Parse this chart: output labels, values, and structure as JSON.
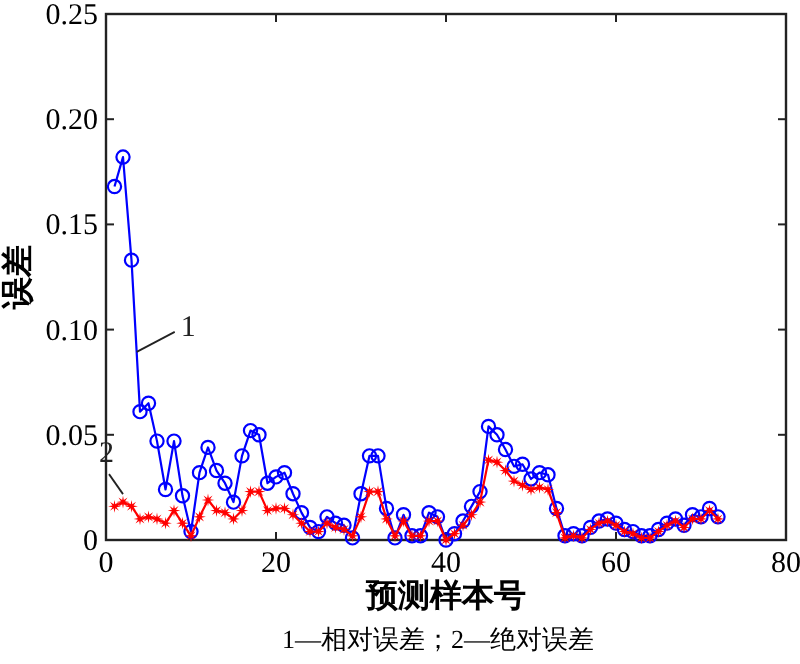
{
  "chart_data": {
    "type": "line",
    "xlabel": "预测样本号",
    "ylabel": "误差",
    "x": [
      1,
      2,
      3,
      4,
      5,
      6,
      7,
      8,
      9,
      10,
      11,
      12,
      13,
      14,
      15,
      16,
      17,
      18,
      19,
      20,
      21,
      22,
      23,
      24,
      25,
      26,
      27,
      28,
      29,
      30,
      31,
      32,
      33,
      34,
      35,
      36,
      37,
      38,
      39,
      40,
      41,
      42,
      43,
      44,
      45,
      46,
      47,
      48,
      49,
      50,
      51,
      52,
      53,
      54,
      55,
      56,
      57,
      58,
      59,
      60,
      61,
      62,
      63,
      64,
      65,
      66,
      67,
      68,
      69,
      70,
      71,
      72
    ],
    "series": [
      {
        "name": "1",
        "color": "#0000ff",
        "marker": "circle",
        "values": [
          0.168,
          0.182,
          0.133,
          0.061,
          0.065,
          0.047,
          0.024,
          0.047,
          0.021,
          0.004,
          0.032,
          0.044,
          0.033,
          0.027,
          0.018,
          0.04,
          0.052,
          0.05,
          0.027,
          0.03,
          0.032,
          0.022,
          0.013,
          0.006,
          0.004,
          0.011,
          0.008,
          0.007,
          0.001,
          0.022,
          0.04,
          0.04,
          0.015,
          0.001,
          0.012,
          0.002,
          0.002,
          0.013,
          0.011,
          0.0,
          0.003,
          0.009,
          0.016,
          0.023,
          0.054,
          0.05,
          0.043,
          0.035,
          0.036,
          0.029,
          0.032,
          0.031,
          0.015,
          0.002,
          0.003,
          0.002,
          0.006,
          0.009,
          0.01,
          0.008,
          0.005,
          0.004,
          0.002,
          0.002,
          0.005,
          0.008,
          0.01,
          0.007,
          0.012,
          0.011,
          0.015,
          0.011
        ]
      },
      {
        "name": "2",
        "color": "#ff0000",
        "marker": "star",
        "values": [
          0.016,
          0.018,
          0.016,
          0.01,
          0.011,
          0.01,
          0.008,
          0.014,
          0.008,
          0.002,
          0.011,
          0.019,
          0.014,
          0.013,
          0.01,
          0.014,
          0.023,
          0.023,
          0.014,
          0.015,
          0.015,
          0.012,
          0.008,
          0.004,
          0.004,
          0.008,
          0.006,
          0.005,
          0.002,
          0.011,
          0.023,
          0.023,
          0.01,
          0.002,
          0.009,
          0.002,
          0.002,
          0.009,
          0.009,
          0.0,
          0.003,
          0.007,
          0.012,
          0.018,
          0.038,
          0.037,
          0.033,
          0.028,
          0.026,
          0.024,
          0.025,
          0.024,
          0.013,
          0.001,
          0.002,
          0.001,
          0.005,
          0.008,
          0.009,
          0.007,
          0.004,
          0.003,
          0.001,
          0.001,
          0.004,
          0.007,
          0.009,
          0.006,
          0.01,
          0.01,
          0.014,
          0.01
        ]
      }
    ],
    "xlim": [
      0,
      80
    ],
    "xticks": [
      0,
      20,
      40,
      60,
      80
    ],
    "ylim": [
      0,
      0.25
    ],
    "yticks": [
      0,
      0.05,
      {
        "value": 0.1,
        "label": "0.10"
      },
      0.15,
      {
        "value": 0.2,
        "label": "0.20"
      },
      0.25
    ],
    "grid": false,
    "line_style": "solid",
    "annotations": [
      "1—相对误差；2—绝对误差"
    ]
  }
}
